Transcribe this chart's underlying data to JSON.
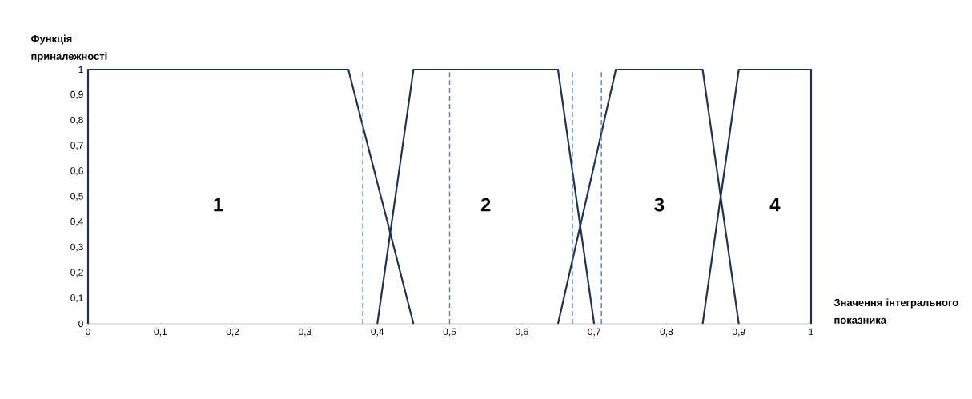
{
  "chart_data": {
    "type": "line",
    "ylabel": "Функція приналежності",
    "xlabel": "Значення інтегрального показника",
    "series": [
      {
        "color": "#1f3350",
        "x": [
          0,
          0,
          0.36,
          0.45
        ],
        "values": [
          0,
          1,
          1,
          0
        ]
      },
      {
        "color": "#1f3350",
        "x": [
          0.4,
          0.45,
          0.65,
          0.7
        ],
        "values": [
          0,
          1,
          1,
          0
        ]
      },
      {
        "color": "#1f3350",
        "x": [
          0.65,
          0.73,
          0.85,
          0.9
        ],
        "values": [
          0,
          1,
          1,
          0
        ]
      },
      {
        "color": "#1f3350",
        "x": [
          0.85,
          0.9,
          1,
          1
        ],
        "values": [
          0,
          1,
          1,
          0
        ]
      }
    ],
    "xlim": [
      0,
      1
    ],
    "ylim": [
      0,
      1
    ],
    "xticks": [
      0,
      {
        "value": 0.1,
        "label": "0,1"
      },
      {
        "value": 0.2,
        "label": "0,2"
      },
      {
        "value": 0.3,
        "label": "0,3"
      },
      {
        "value": 0.4,
        "label": "0,4"
      },
      {
        "value": 0.5,
        "label": "0,5"
      },
      {
        "value": 0.6,
        "label": "0,6"
      },
      {
        "value": 0.7,
        "label": "0,7"
      },
      {
        "value": 0.8,
        "label": "0,8"
      },
      {
        "value": 0.9,
        "label": "0,9"
      },
      1
    ],
    "yticks": [
      0,
      {
        "value": 0.1,
        "label": "0,1"
      },
      {
        "value": 0.2,
        "label": "0,2"
      },
      {
        "value": 0.3,
        "label": "0,3"
      },
      {
        "value": 0.4,
        "label": "0,4"
      },
      {
        "value": 0.5,
        "label": "0,5"
      },
      {
        "value": 0.6,
        "label": "0,6"
      },
      {
        "value": 0.7,
        "label": "0,7"
      },
      {
        "value": 0.8,
        "label": "0,8"
      },
      {
        "value": 0.9,
        "label": "0,9"
      },
      1
    ],
    "ref_lines": [
      {
        "axis": "x",
        "value": 0.38,
        "color": "#4a7ebb",
        "line_style": "dashed"
      },
      {
        "axis": "x",
        "value": 0.5,
        "color": "#4a7ebb",
        "line_style": "dashed"
      },
      {
        "axis": "x",
        "value": 0.67,
        "color": "#4a7ebb",
        "line_style": "dashed"
      },
      {
        "axis": "x",
        "value": 0.71,
        "color": "#4a7ebb",
        "line_style": "dashed"
      }
    ],
    "annotations": [
      "1",
      "2",
      "3",
      "4"
    ],
    "grid": false,
    "marker": "none",
    "line_style": "solid"
  }
}
